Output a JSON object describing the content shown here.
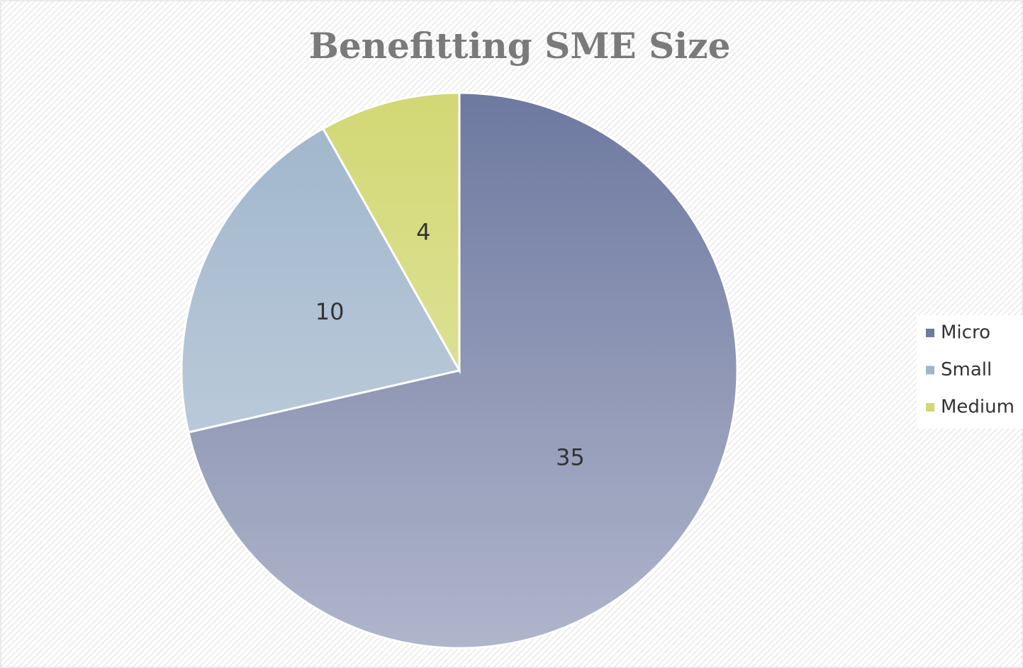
{
  "chart_data": {
    "type": "pie",
    "title": "Benefitting SME Size",
    "categories": [
      "Micro",
      "Small",
      "Medium"
    ],
    "values": [
      35,
      10,
      4
    ],
    "colors": [
      "#6e79a0",
      "#9fb5cb",
      "#d2d874"
    ],
    "legend": "right"
  }
}
